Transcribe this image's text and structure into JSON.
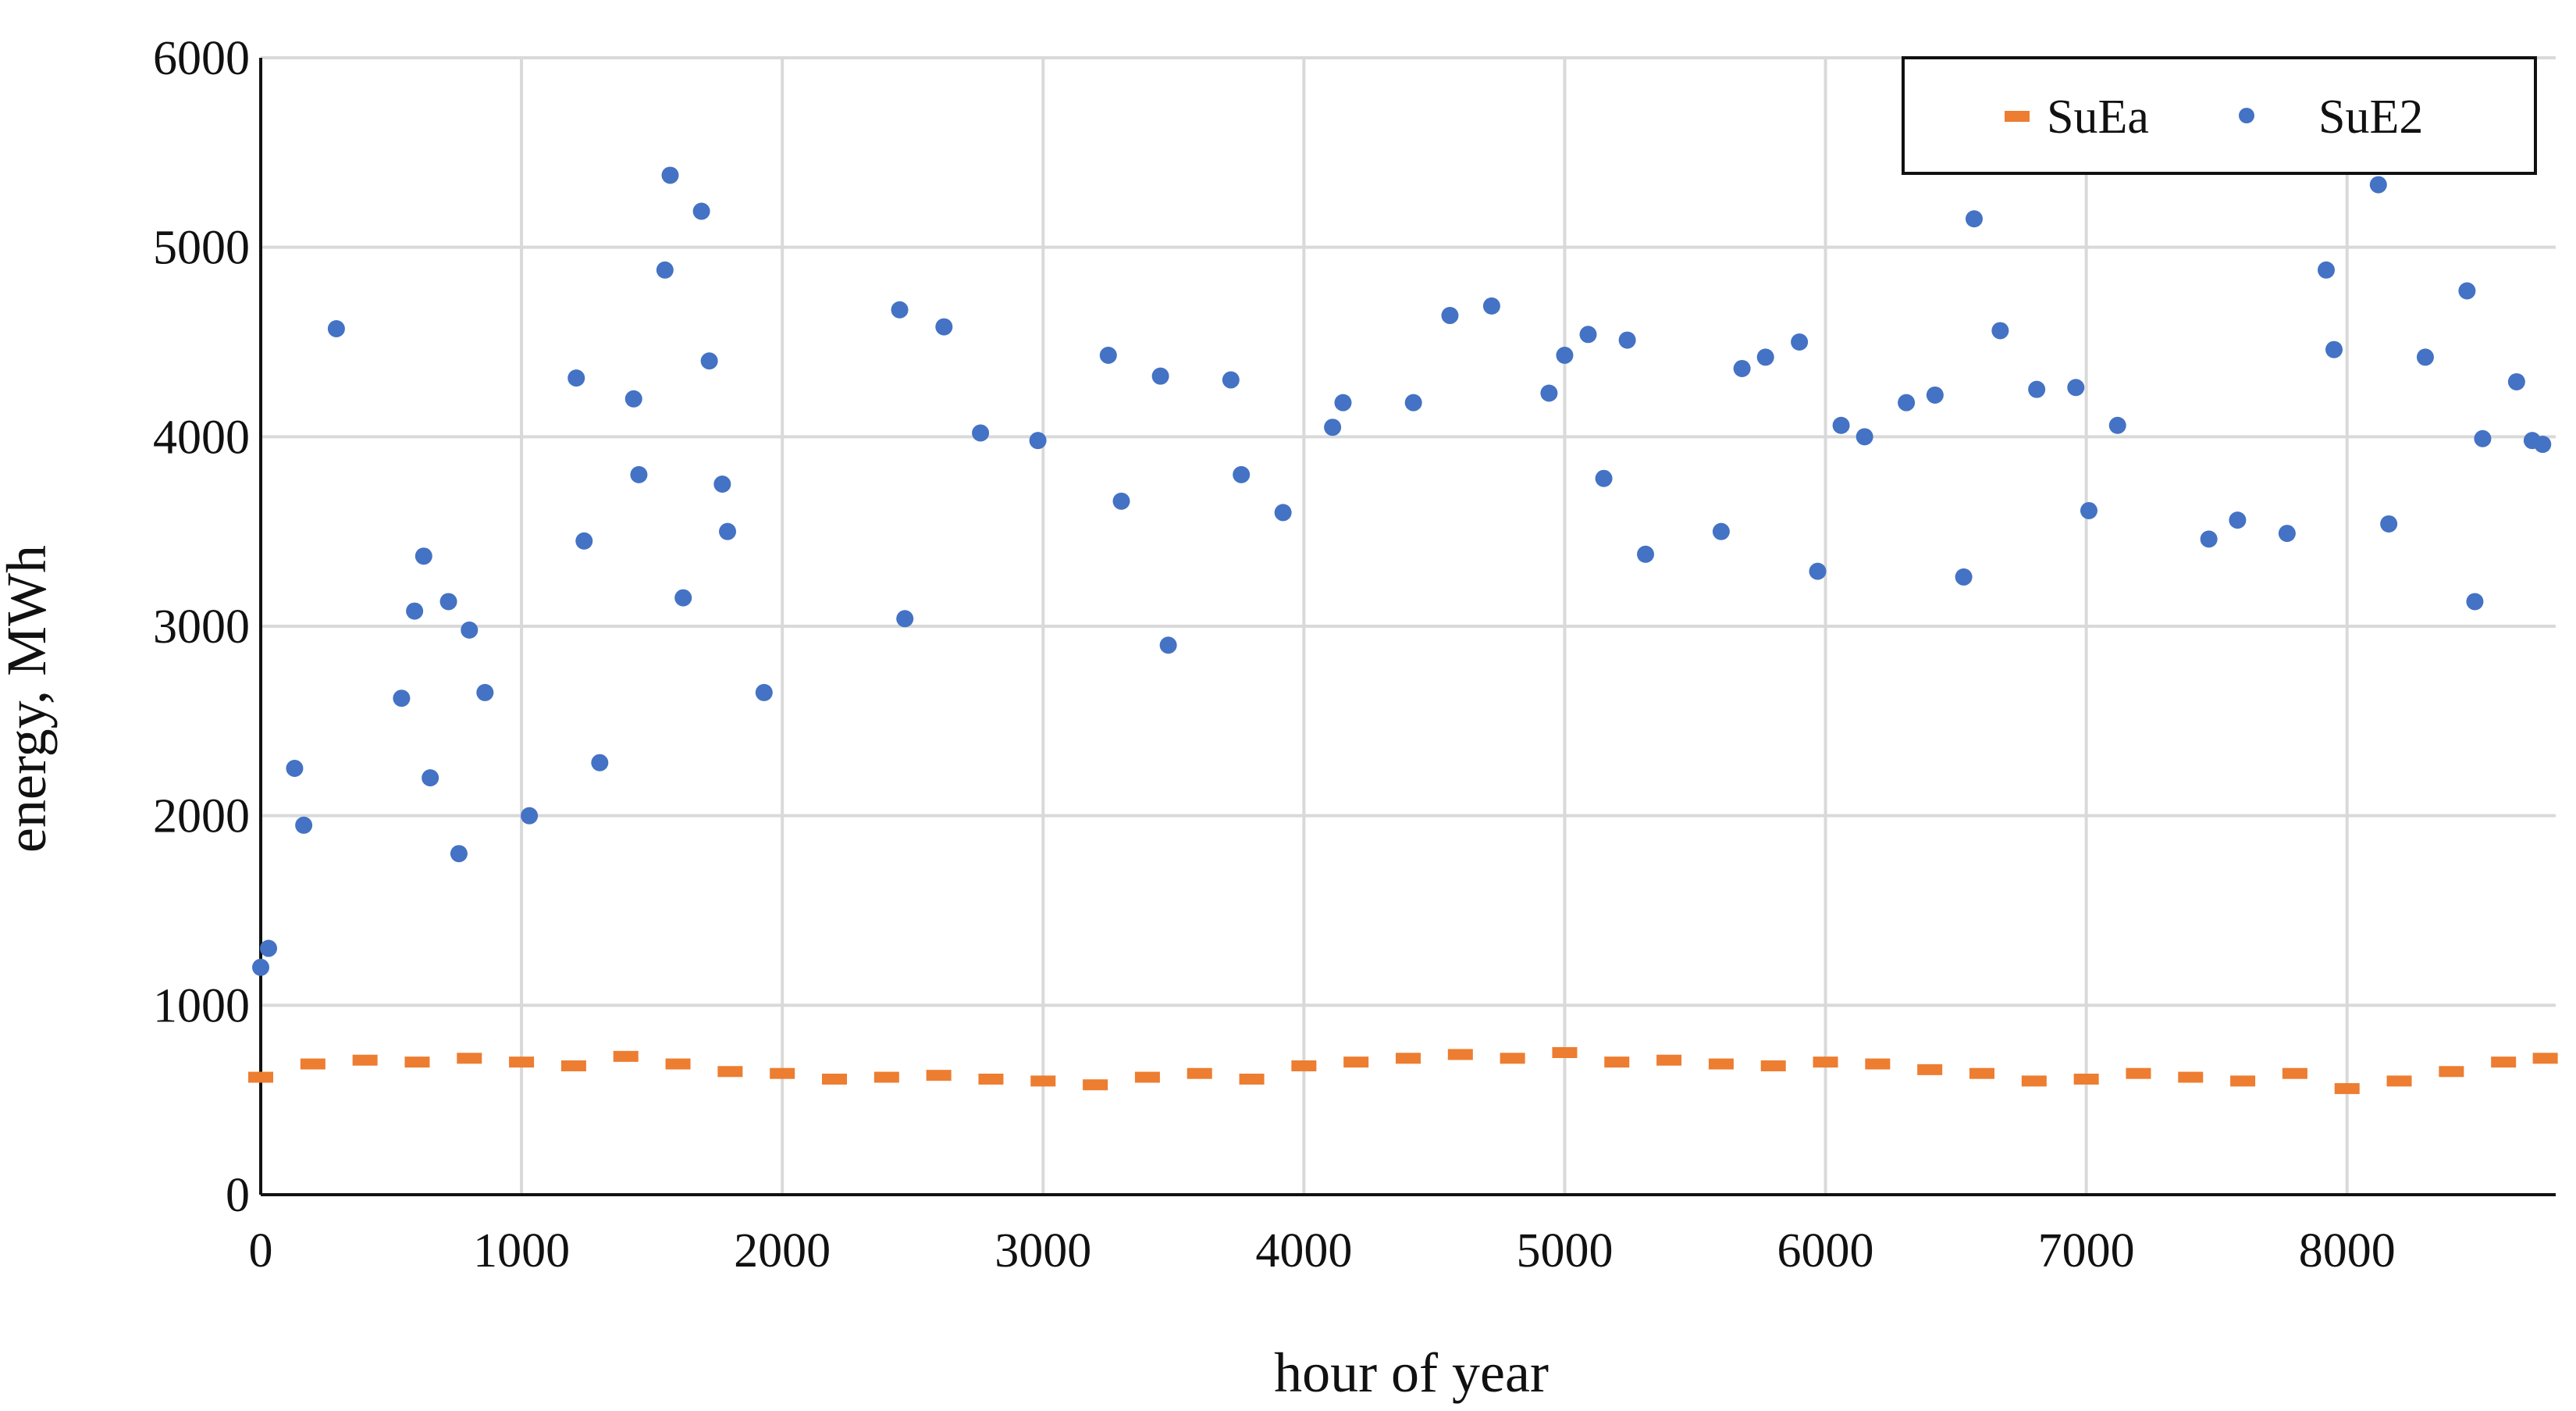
{
  "chart_data": {
    "type": "scatter",
    "title": "",
    "xlabel": "hour of year",
    "ylabel": "energy, MWh",
    "xlim": [
      0,
      8800
    ],
    "ylim": [
      0,
      6000
    ],
    "x_ticks": [
      0,
      1000,
      2000,
      3000,
      4000,
      5000,
      6000,
      7000,
      8000
    ],
    "y_ticks": [
      0,
      1000,
      2000,
      3000,
      4000,
      5000,
      6000
    ],
    "x_tick_labels": [
      "0",
      "1000",
      "2000",
      "3000",
      "4000",
      "5000",
      "6000",
      "7000",
      "8000"
    ],
    "y_tick_labels": [
      "0",
      "1000",
      "2000",
      "3000",
      "4000",
      "5000",
      "6000"
    ],
    "grid": true,
    "legend_position": "top-right",
    "series": [
      {
        "name": "SuEa",
        "marker": "dash",
        "color": "#ED7D31",
        "x": [
          0,
          200,
          400,
          600,
          800,
          1000,
          1200,
          1400,
          1600,
          1800,
          2000,
          2200,
          2400,
          2600,
          2800,
          3000,
          3200,
          3400,
          3600,
          3800,
          4000,
          4200,
          4400,
          4600,
          4800,
          5000,
          5200,
          5400,
          5600,
          5800,
          6000,
          6200,
          6400,
          6600,
          6800,
          7000,
          7200,
          7400,
          7600,
          7800,
          8000,
          8200,
          8400,
          8600,
          8760
        ],
        "y": [
          620,
          690,
          710,
          700,
          720,
          700,
          680,
          730,
          690,
          650,
          640,
          610,
          620,
          630,
          610,
          600,
          580,
          620,
          640,
          610,
          680,
          700,
          720,
          740,
          720,
          750,
          700,
          710,
          690,
          680,
          700,
          690,
          660,
          640,
          600,
          610,
          640,
          620,
          600,
          640,
          560,
          600,
          650,
          700,
          720
        ]
      },
      {
        "name": "SuE2",
        "marker": "circle",
        "color": "#4472C4",
        "x": [
          0,
          30,
          130,
          165,
          290,
          540,
          590,
          625,
          650,
          720,
          760,
          800,
          860,
          1030,
          1210,
          1240,
          1300,
          1430,
          1450,
          1550,
          1570,
          1620,
          1690,
          1720,
          1770,
          1790,
          1930,
          2450,
          2470,
          2620,
          2760,
          2980,
          3250,
          3300,
          3450,
          3480,
          3720,
          3760,
          3920,
          4110,
          4150,
          4420,
          4560,
          4720,
          4940,
          5000,
          5090,
          5150,
          5240,
          5310,
          5600,
          5680,
          5770,
          5900,
          5970,
          6060,
          6150,
          6310,
          6420,
          6530,
          6570,
          6670,
          6810,
          6960,
          7010,
          7120,
          7470,
          7580,
          7770,
          7920,
          7950,
          8120,
          8160,
          8300,
          8460,
          8490,
          8520,
          8650,
          8710,
          8750
        ],
        "y": [
          1200,
          1300,
          2250,
          1950,
          4570,
          2620,
          3080,
          3370,
          2200,
          3130,
          1800,
          2980,
          2650,
          2000,
          4310,
          3450,
          2280,
          4200,
          3800,
          4880,
          5380,
          3150,
          5190,
          4400,
          3750,
          3500,
          2650,
          4670,
          3040,
          4580,
          4020,
          3980,
          4430,
          3660,
          4320,
          2900,
          4300,
          3800,
          3600,
          4050,
          4180,
          4180,
          4640,
          4690,
          4230,
          4430,
          4540,
          3780,
          4510,
          3380,
          3500,
          4360,
          4420,
          4500,
          3290,
          4060,
          4000,
          4180,
          4220,
          3260,
          5150,
          4560,
          4250,
          4260,
          3610,
          4060,
          3460,
          3560,
          3490,
          4880,
          4460,
          5330,
          3540,
          4420,
          4770,
          3130,
          3990,
          4290,
          3980,
          3960
        ]
      }
    ]
  }
}
